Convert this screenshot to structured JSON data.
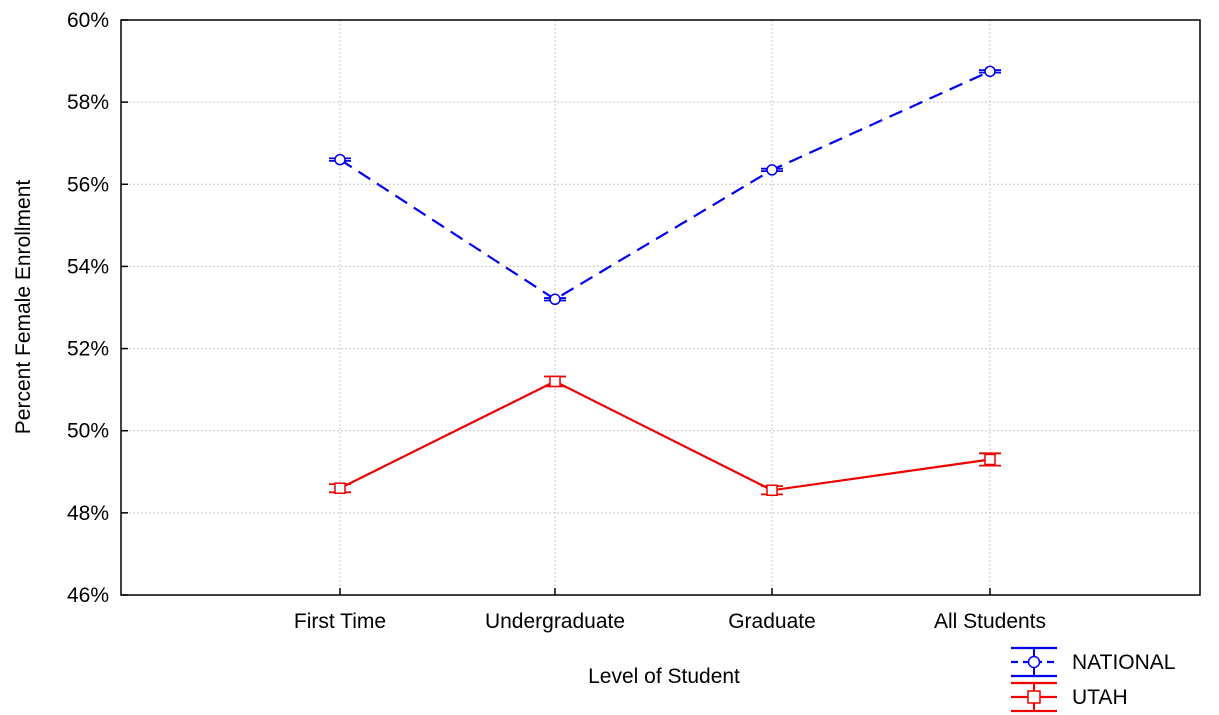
{
  "chart_data": {
    "type": "line",
    "xlabel": "Level of Student",
    "ylabel": "Percent Female Enrollment",
    "categories": [
      "First Time",
      "Undergraduate",
      "Graduate",
      "All Students"
    ],
    "ylim": [
      46,
      60
    ],
    "yticks": [
      46,
      48,
      50,
      52,
      54,
      56,
      58,
      60
    ],
    "ytick_labels": [
      "46%",
      "48%",
      "50%",
      "52%",
      "54%",
      "56%",
      "58%",
      "60%"
    ],
    "grid": true,
    "error_bars": true,
    "legend_position": "bottom-right",
    "series": [
      {
        "name": "NATIONAL",
        "values": [
          56.6,
          53.2,
          56.35,
          58.75
        ],
        "errors": [
          0.03,
          0.03,
          0.03,
          0.03
        ],
        "color": "#0000ee",
        "line_style": "dashed",
        "marker": "circle"
      },
      {
        "name": "UTAH",
        "values": [
          48.6,
          51.2,
          48.55,
          49.3
        ],
        "errors": [
          0.1,
          0.12,
          0.1,
          0.15
        ],
        "color": "#ee0000",
        "line_style": "solid",
        "marker": "square"
      }
    ]
  }
}
